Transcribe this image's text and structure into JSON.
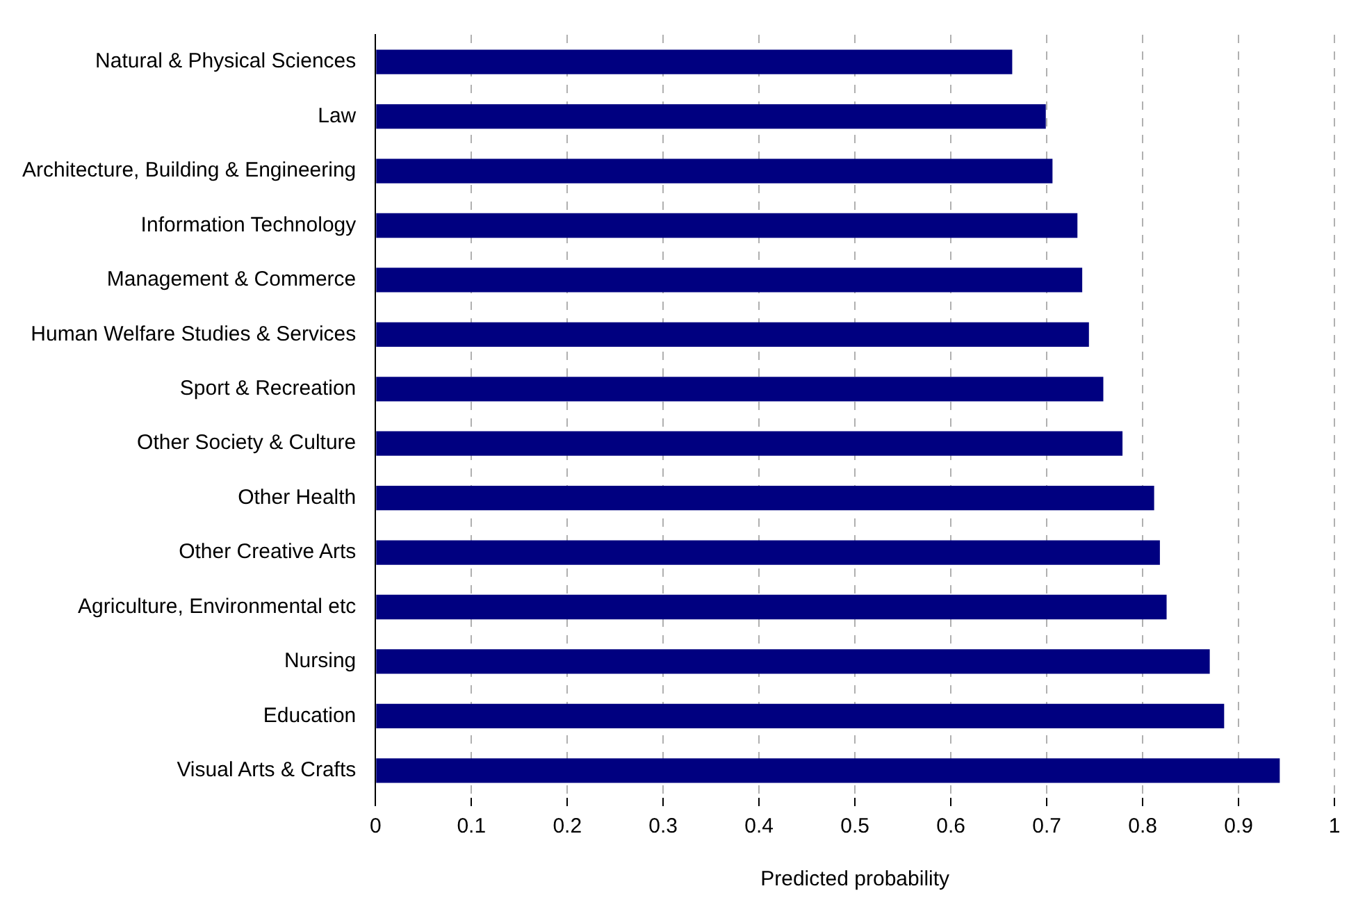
{
  "chart_data": {
    "type": "bar",
    "orientation": "horizontal",
    "xlabel": "Predicted probability",
    "categories": [
      "Natural & Physical Sciences",
      "Law",
      "Architecture, Building & Engineering",
      "Information Technology",
      "Management & Commerce",
      "Human Welfare Studies & Services",
      "Sport & Recreation",
      "Other Society & Culture",
      "Other Health",
      "Other Creative Arts",
      "Agriculture, Environmental etc",
      "Nursing",
      "Education",
      "Visual Arts & Crafts"
    ],
    "values": [
      0.664,
      0.699,
      0.706,
      0.732,
      0.737,
      0.744,
      0.759,
      0.779,
      0.812,
      0.818,
      0.825,
      0.87,
      0.885,
      0.943
    ],
    "color": "#000080",
    "xlim": [
      0,
      1
    ],
    "xticks": [
      0,
      0.1,
      0.2,
      0.3,
      0.4,
      0.5,
      0.6,
      0.7,
      0.8,
      0.9,
      1
    ],
    "grid": "x",
    "legend": false
  }
}
